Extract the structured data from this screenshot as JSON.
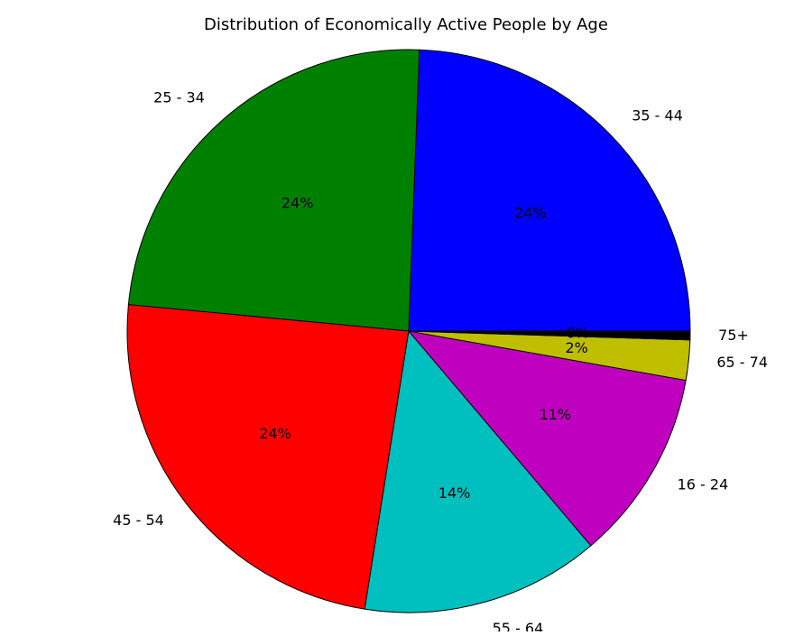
{
  "chart_data": {
    "type": "pie",
    "title": "Distribution of Economically Active People by Age",
    "slices": [
      {
        "label": "35 - 44",
        "value": 24.4,
        "pct_label": "24%",
        "color": "#0000ff"
      },
      {
        "label": "25 - 34",
        "value": 24.1,
        "pct_label": "24%",
        "color": "#008000"
      },
      {
        "label": "45 - 54",
        "value": 24.0,
        "pct_label": "24%",
        "color": "#ff0000"
      },
      {
        "label": "55 - 64",
        "value": 13.7,
        "pct_label": "14%",
        "color": "#00bfbf"
      },
      {
        "label": "16 - 24",
        "value": 11.0,
        "pct_label": "11%",
        "color": "#bf00bf"
      },
      {
        "label": "65 - 74",
        "value": 2.3,
        "pct_label": "2%",
        "color": "#bfbf00"
      },
      {
        "label": "75+",
        "value": 0.5,
        "pct_label": "0%",
        "color": "#000000"
      }
    ],
    "start_angle_deg": 0,
    "direction": "counterclockwise",
    "wedge_edge_color": "#000000"
  }
}
